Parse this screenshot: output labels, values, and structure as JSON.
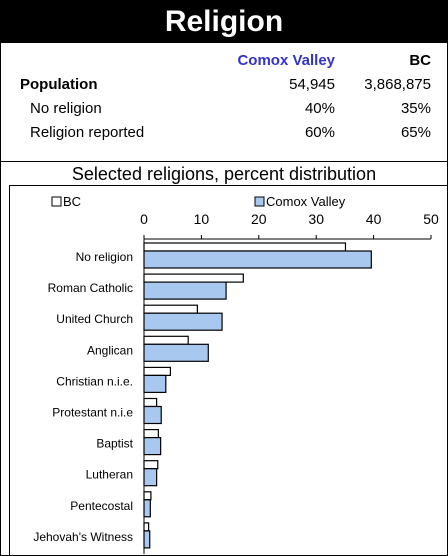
{
  "header": {
    "title": "Religion"
  },
  "table": {
    "columns": [
      "Comox Valley",
      "BC"
    ],
    "rows": [
      {
        "label": "Population",
        "values": [
          "54,945",
          "3,868,875"
        ],
        "bold": true
      },
      {
        "label": "No religion",
        "values": [
          "40%",
          "35%"
        ]
      },
      {
        "label": "Religion reported",
        "values": [
          "60%",
          "65%"
        ]
      }
    ]
  },
  "colors": {
    "accent": "#3333cc",
    "bar_comox": "#a9c8f0",
    "bar_bc": "#ffffff"
  },
  "chart_data": {
    "type": "bar",
    "orientation": "horizontal",
    "title": "Selected religions, percent distribution",
    "categories": [
      "No religion",
      "Roman Catholic",
      "United Church",
      "Anglican",
      "Christian n.i.e.",
      "Protestant n.i.e",
      "Baptist",
      "Lutheran",
      "Pentecostal",
      "Jehovah's Witness"
    ],
    "series": [
      {
        "name": "BC",
        "values": [
          35.1,
          17.3,
          9.3,
          7.7,
          4.6,
          2.2,
          2.5,
          2.4,
          1.2,
          0.8
        ]
      },
      {
        "name": "Comox Valley",
        "values": [
          39.6,
          14.3,
          13.6,
          11.2,
          3.8,
          3.0,
          2.9,
          2.2,
          1.1,
          1.0
        ]
      }
    ],
    "xlim": [
      0,
      50
    ],
    "xticks": [
      0,
      10,
      20,
      30,
      40,
      50
    ],
    "legend_position": "top",
    "grid": false
  }
}
